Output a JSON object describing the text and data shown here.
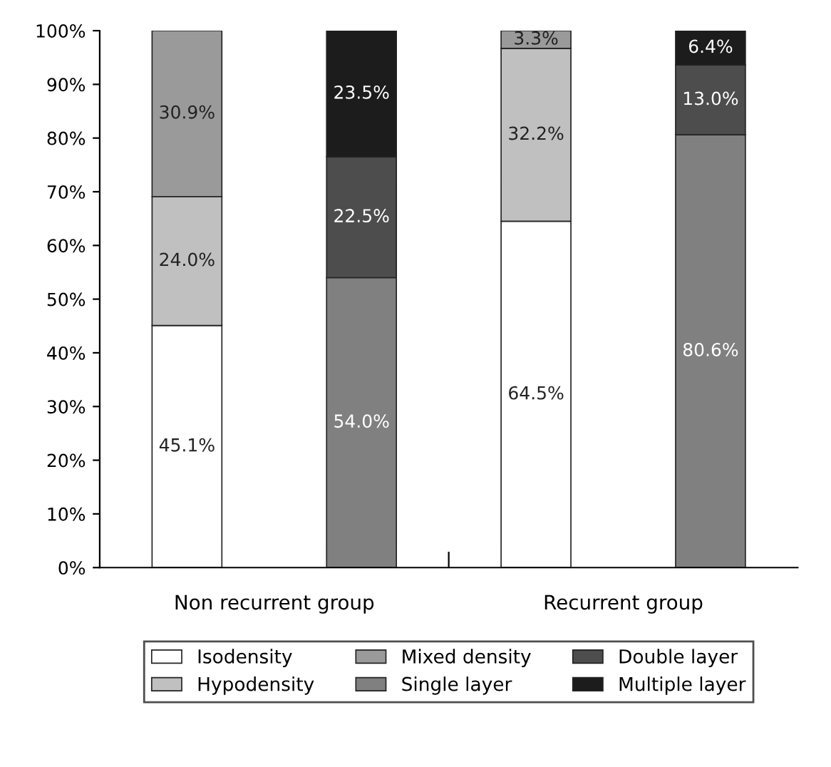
{
  "chart_data": {
    "type": "bar",
    "stacked": true,
    "categories": [
      null,
      null,
      null,
      null
    ],
    "series": [
      {
        "name": "Isodensity",
        "color": "#ffffff",
        "values": [
          45.1,
          null,
          64.5,
          null
        ],
        "value_labels": [
          "45.1%",
          null,
          "64.5%",
          null
        ]
      },
      {
        "name": "Hypodensity",
        "color": "#c0c0c0",
        "values": [
          24.0,
          null,
          32.2,
          null
        ],
        "value_labels": [
          "24.0%",
          null,
          "32.2%",
          null
        ]
      },
      {
        "name": "Mixed density",
        "color": "#9a9a9a",
        "values": [
          30.9,
          null,
          3.3,
          null
        ],
        "value_labels": [
          "30.9%",
          null,
          "3.3%",
          null
        ]
      },
      {
        "name": "Single layer",
        "color": "#808080",
        "values": [
          null,
          54.0,
          null,
          80.6
        ],
        "value_labels": [
          null,
          "54.0%",
          null,
          "80.6%"
        ]
      },
      {
        "name": "Double layer",
        "color": "#4d4d4d",
        "values": [
          null,
          22.5,
          null,
          13.0
        ],
        "value_labels": [
          null,
          "22.5%",
          null,
          "13.0%"
        ]
      },
      {
        "name": "Multiple layer",
        "color": "#1c1c1c",
        "values": [
          null,
          23.5,
          null,
          6.4
        ],
        "value_labels": [
          null,
          "23.5%",
          null,
          "6.4%"
        ]
      }
    ],
    "annotations": [
      "Non recurrent group",
      "Recurrent group"
    ],
    "ylim": [
      0,
      100
    ],
    "yticks": [
      {
        "value": 0,
        "label": "0%"
      },
      {
        "value": 10,
        "label": "10%"
      },
      {
        "value": 20,
        "label": "20%"
      },
      {
        "value": 30,
        "label": "30%"
      },
      {
        "value": 40,
        "label": "40%"
      },
      {
        "value": 50,
        "label": "50%"
      },
      {
        "value": 60,
        "label": "60%"
      },
      {
        "value": 70,
        "label": "70%"
      },
      {
        "value": 80,
        "label": "80%"
      },
      {
        "value": 90,
        "label": "90%"
      },
      {
        "value": 100,
        "label": "100%"
      }
    ],
    "grid": false,
    "legend": "bottom"
  }
}
